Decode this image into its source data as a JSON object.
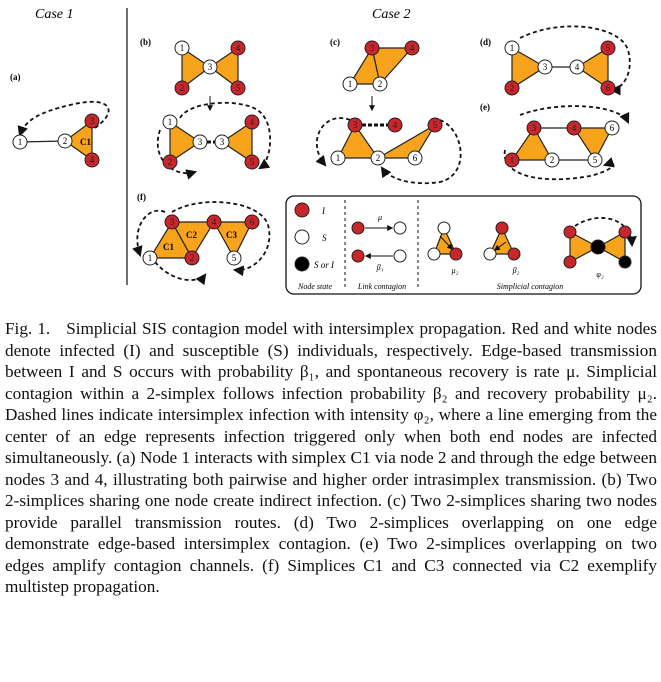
{
  "figure": {
    "case1_label": "Case 1",
    "case2_label": "Case 2",
    "panels": {
      "a": "(a)",
      "b": "(b)",
      "c": "(c)",
      "d": "(d)",
      "e": "(e)",
      "f": "(f)"
    },
    "simplex_labels": {
      "c1": "C1",
      "c2": "C2",
      "c3": "C3"
    },
    "node_numbers": [
      "1",
      "2",
      "3",
      "4",
      "5",
      "6"
    ],
    "legend": {
      "infected": "I",
      "susceptible": "S",
      "either": "S or I",
      "mu": "μ",
      "beta1": "β₁",
      "mu2": "μ₂",
      "beta2": "β₂",
      "phi2": "φ₂",
      "node_state": "Node state",
      "link_contagion": "Link contagion",
      "simplicial_contagion": "Simplicial contagion"
    },
    "colors": {
      "infected": "#C9252B",
      "susceptible": "#FFFFFF",
      "simplex_fill": "#F7A41C",
      "either": "#000000"
    }
  },
  "caption": {
    "label": "Fig. 1.",
    "text": "Simplicial SIS contagion model with intersimplex propagation. Red and white nodes denote infected (I) and susceptible (S) individuals, respectively. Edge-based transmission between I and S occurs with probability β₁, and spontaneous recovery is rate μ. Simplicial contagion within a 2-simplex follows infection probability β₂ and recovery probability μ₂. Dashed lines indicate intersimplex infection with intensity φ₂, where a line emerging from the center of an edge represents infection triggered only when both end nodes are infected simultaneously. (a) Node 1 interacts with simplex C1 via node 2 and through the edge between nodes 3 and 4, illustrating both pairwise and higher order intrasimplex transmission. (b) Two 2-simplices sharing one node create indirect infection. (c) Two 2-simplices sharing two nodes provide parallel transmission routes. (d) Two 2-simplices overlapping on one edge demonstrate edge-based intersimplex contagion. (e) Two 2-simplices overlapping on two edges amplify contagion channels. (f) Simplices C1 and C3 connected via C2 exemplify multistep propagation."
  }
}
